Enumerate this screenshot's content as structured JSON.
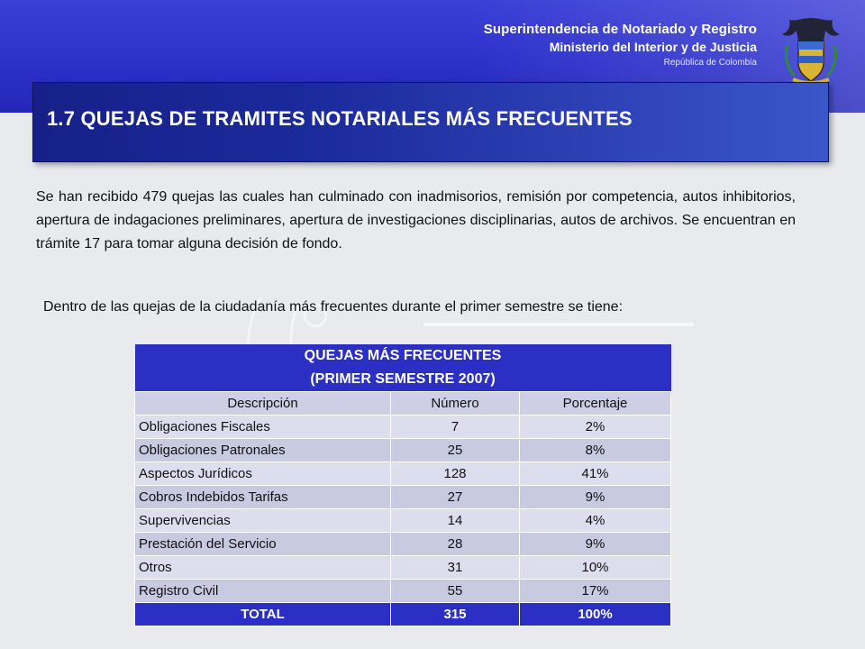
{
  "header": {
    "org_line1": "Superintendencia de Notariado y Registro",
    "org_line2": "Ministerio del Interior y de Justicia",
    "org_line3": "República de Colombia",
    "seal_icon": "colombia-coat-of-arms-icon",
    "colors": {
      "banner": "#2b2fc8",
      "title_bar": "#1b2a9c"
    }
  },
  "slide": {
    "title": "1.7 QUEJAS DE TRAMITES NOTARIALES MÁS FRECUENTES",
    "paragraph1": "Se han  recibido 479 quejas las cuales han culminado con inadmisorios, remisión por competencia, autos inhibitorios, apertura de indagaciones preliminares, apertura de investigaciones disciplinarias,  autos de archivos. Se encuentran en trámite  17 para tomar alguna decisión de fondo.",
    "paragraph2": "Dentro de las quejas de la ciudadanía más frecuentes durante el primer semestre se tiene:"
  },
  "table": {
    "title_line1": "QUEJAS MÁS FRECUENTES",
    "title_line2": "(PRIMER SEMESTRE 2007)",
    "columns": [
      "Descripción",
      "Número",
      "Porcentaje"
    ],
    "rows": [
      {
        "description": "Obligaciones Fiscales",
        "number": "7",
        "percent": "2%"
      },
      {
        "description": "Obligaciones Patronales",
        "number": "25",
        "percent": "8%"
      },
      {
        "description": "Aspectos Jurídicos",
        "number": "128",
        "percent": "41%"
      },
      {
        "description": "Cobros Indebidos Tarifas",
        "number": "27",
        "percent": "9%"
      },
      {
        "description": "Supervivencias",
        "number": "14",
        "percent": "4%"
      },
      {
        "description": "Prestación del Servicio",
        "number": "28",
        "percent": "9%"
      },
      {
        "description": "Otros",
        "number": "31",
        "percent": "10%"
      },
      {
        "description": "Registro Civil",
        "number": "55",
        "percent": "17%"
      }
    ],
    "total": {
      "label": "TOTAL",
      "number": "315",
      "percent": "100%"
    },
    "colors": {
      "header": "#2b2fc4",
      "row_light": "#dcdeee",
      "row_dark": "#c7cae0"
    }
  }
}
